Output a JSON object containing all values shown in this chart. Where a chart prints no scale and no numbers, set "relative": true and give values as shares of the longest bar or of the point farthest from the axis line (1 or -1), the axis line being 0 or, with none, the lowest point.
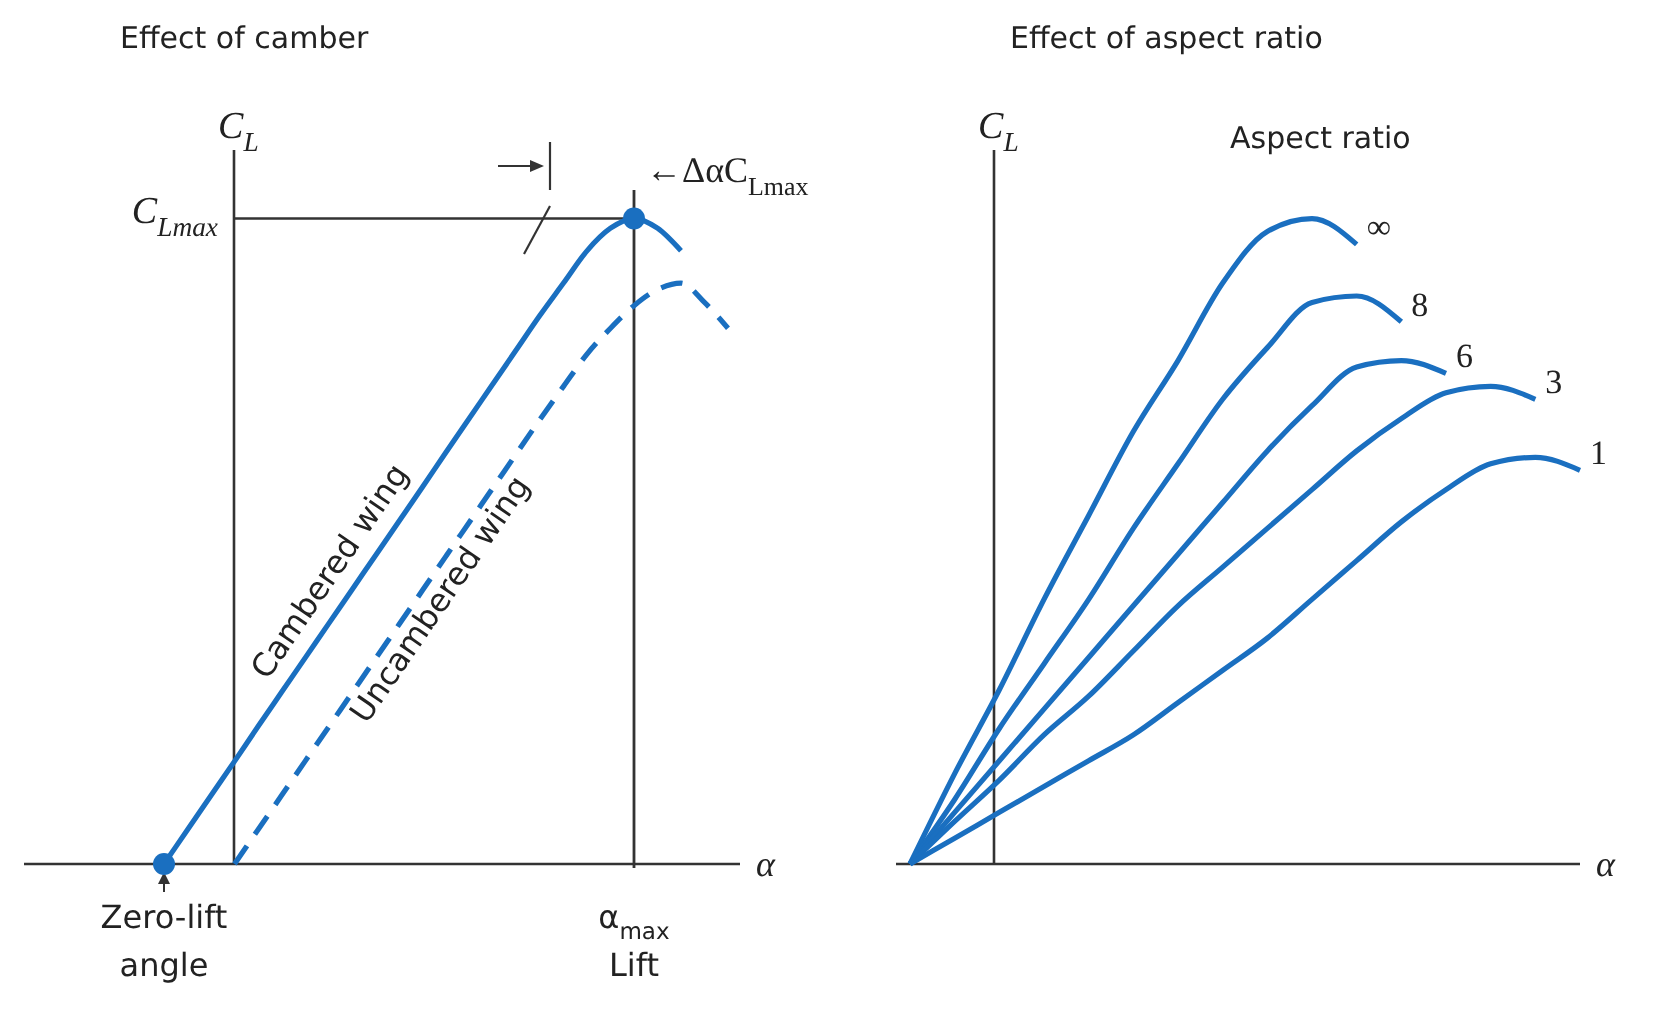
{
  "chart_data": [
    {
      "type": "line",
      "title": "Effect of camber",
      "xlabel": "α",
      "ylabel": "C$_{L}$",
      "relative": true,
      "categories": [
        null,
        null,
        null,
        null,
        null,
        null,
        "Zero-lift\nangle",
        null,
        null,
        null,
        null,
        null,
        null,
        null,
        null,
        null,
        null,
        null,
        null,
        null,
        null,
        null,
        null,
        null,
        null,
        null,
        "α$_{max}$\nLift",
        null,
        null,
        null,
        null
      ],
      "ref_lines": [
        {
          "axis": "x",
          "value": "α$_{max}$\nLift",
          "label": null
        },
        {
          "axis": "y",
          "value": 1,
          "label": "C$_{Lmax}$"
        }
      ],
      "annotations": [
        "←ΔαC$_{Lmax}$"
      ],
      "series": [
        {
          "name": "Cambered wing",
          "color": "#1a6fc0",
          "line_style": "solid",
          "values": [
            null,
            null,
            null,
            null,
            null,
            null,
            0,
            0.053,
            0.106,
            0.159,
            0.213,
            0.266,
            0.319,
            0.372,
            0.425,
            0.478,
            0.531,
            0.584,
            0.638,
            0.691,
            0.744,
            0.797,
            0.85,
            0.9,
            0.95,
            0.985,
            1.0,
            0.985,
            0.95,
            null,
            null
          ]
        },
        {
          "name": "Uncambered wing",
          "color": "#1a6fc0",
          "line_style": "dashed",
          "values": [
            null,
            null,
            null,
            null,
            null,
            null,
            null,
            null,
            null,
            0,
            0.053,
            0.106,
            0.159,
            0.212,
            0.265,
            0.318,
            0.371,
            0.424,
            0.477,
            0.53,
            0.583,
            0.636,
            0.689,
            0.74,
            0.79,
            0.83,
            0.865,
            0.89,
            0.9,
            0.87,
            0.83
          ]
        },
        {
          "type": "scatter",
          "color": "#1a6fc0",
          "marker": "circle",
          "values": [
            null,
            null,
            null,
            null,
            null,
            null,
            0,
            null,
            null,
            null,
            null,
            null,
            null,
            null,
            null,
            null,
            null,
            null,
            null,
            null,
            null,
            null,
            null,
            null,
            null,
            null,
            1.0,
            null,
            null,
            null,
            null
          ]
        }
      ]
    },
    {
      "type": "line",
      "title": "Effect of aspect ratio",
      "xlabel": "α",
      "ylabel": "C$_{L}$",
      "legend_title": "Aspect ratio",
      "relative": true,
      "categories": [
        null,
        null,
        null,
        null,
        null,
        null,
        null,
        null,
        null,
        null,
        null,
        null,
        null,
        null,
        null,
        null
      ],
      "series": [
        {
          "name": "∞",
          "color": "#1a6fc0",
          "values": [
            0,
            0.14,
            0.27,
            0.41,
            0.54,
            0.67,
            0.78,
            0.9,
            0.98,
            1.0,
            0.96,
            null,
            null,
            null,
            null,
            null
          ]
        },
        {
          "name": "8",
          "color": "#1a6fc0",
          "values": [
            0,
            0.1,
            0.21,
            0.31,
            0.41,
            0.52,
            0.62,
            0.72,
            0.8,
            0.87,
            0.88,
            0.84,
            null,
            null,
            null,
            null
          ]
        },
        {
          "name": "6",
          "color": "#1a6fc0",
          "values": [
            0,
            0.08,
            0.16,
            0.24,
            0.32,
            0.4,
            0.48,
            0.56,
            0.64,
            0.71,
            0.77,
            0.78,
            0.76,
            null,
            null,
            null
          ]
        },
        {
          "name": "3",
          "color": "#1a6fc0",
          "values": [
            0,
            0.066,
            0.13,
            0.2,
            0.26,
            0.33,
            0.4,
            0.46,
            0.52,
            0.58,
            0.64,
            0.69,
            0.73,
            0.74,
            0.72,
            null
          ]
        },
        {
          "name": "1",
          "color": "#1a6fc0",
          "values": [
            0,
            0.04,
            0.08,
            0.12,
            0.16,
            0.2,
            0.25,
            0.3,
            0.35,
            0.41,
            0.47,
            0.53,
            0.58,
            0.62,
            0.63,
            0.61
          ]
        }
      ]
    }
  ]
}
